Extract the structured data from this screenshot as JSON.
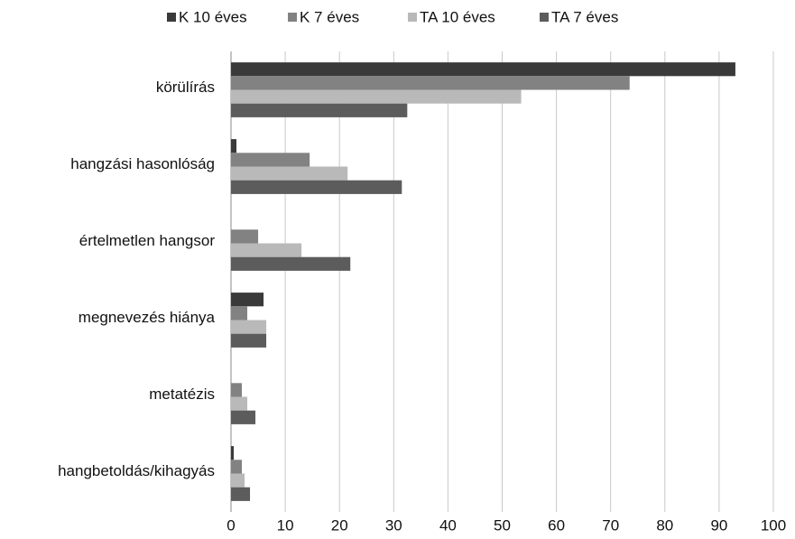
{
  "chart_data": {
    "type": "hbar",
    "categories": [
      "körülírás",
      "hangzási hasonlóság",
      "értelmetlen hangsor",
      "megnevezés hiánya",
      "metatézis",
      "hangbetoldás/kihagyás"
    ],
    "series": [
      {
        "name": "K 10 éves",
        "color": "#3a3a3a",
        "values": [
          93,
          1,
          0,
          6,
          0,
          0.5
        ]
      },
      {
        "name": "K 7 éves",
        "color": "#828282",
        "values": [
          73.5,
          14.5,
          5,
          3,
          2,
          2
        ]
      },
      {
        "name": "TA 10 éves",
        "color": "#b9b9b9",
        "values": [
          53.5,
          21.5,
          13,
          6.5,
          3,
          2.5
        ]
      },
      {
        "name": "TA 7 éves",
        "color": "#5c5c5c",
        "values": [
          32.5,
          31.5,
          22,
          6.5,
          4.5,
          3.5
        ]
      }
    ],
    "xlim": [
      0,
      100
    ],
    "xticks": [
      0,
      10,
      20,
      30,
      40,
      50,
      60,
      70,
      80,
      90,
      100
    ],
    "grid": true,
    "legend": "top"
  }
}
